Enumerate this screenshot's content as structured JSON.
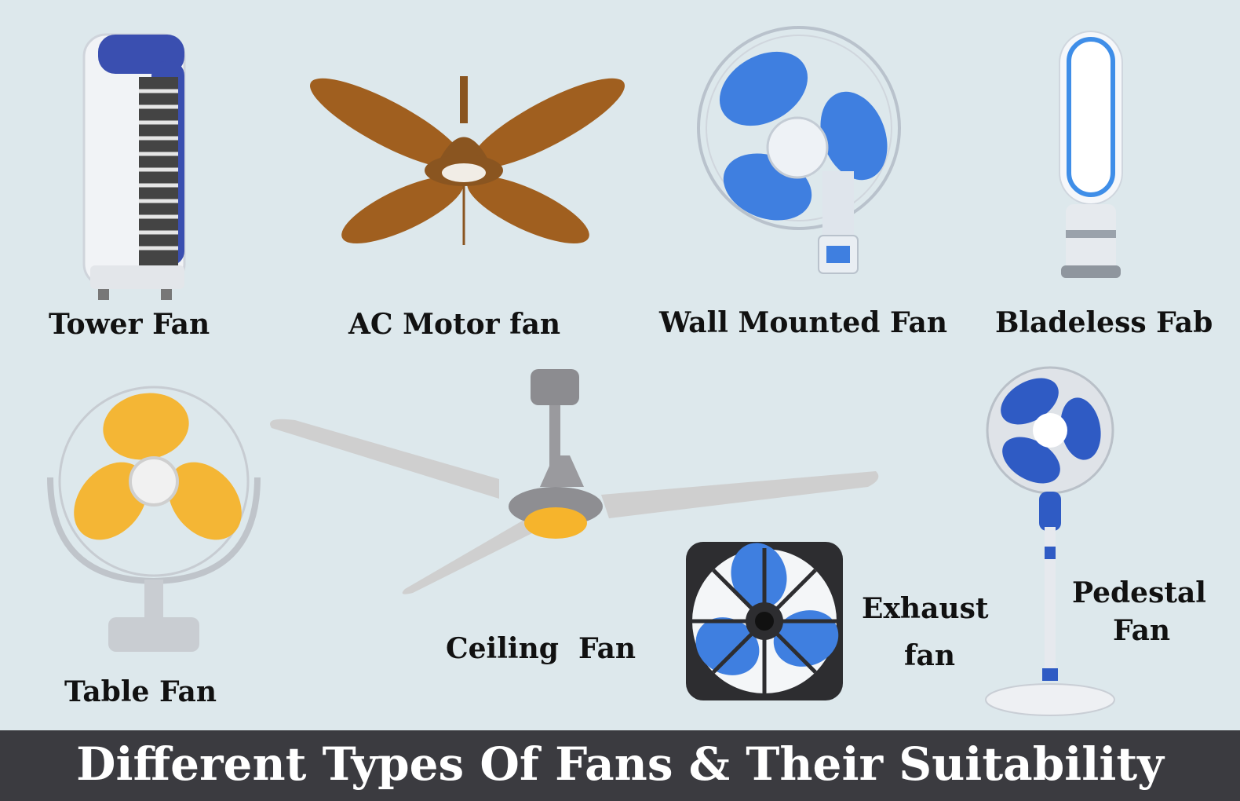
{
  "fans": {
    "tower": "Tower Fan",
    "ac_motor": "AC Motor fan",
    "wall_mounted": "Wall Mounted Fan",
    "bladeless": "Bladeless Fab",
    "table": "Table Fan",
    "ceiling": "Ceiling  Fan",
    "exhaust_line1": "Exhaust",
    "exhaust_line2": "fan",
    "pedestal_line1": "Pedestal",
    "pedestal_line2": "Fan"
  },
  "footer": {
    "title": "Different Types Of Fans & Their Suitability"
  },
  "colors": {
    "background": "#dde8ec",
    "footer_bg": "#3b3b40",
    "tower_blue": "#3a4fb0",
    "wood_brown": "#a05f1f",
    "fan_blue": "#3f7fe0",
    "table_yellow": "#f6b42c",
    "ceiling_grey": "#c9c9c9",
    "exhaust_frame": "#2d2d30"
  },
  "icons": [
    "tower-fan-icon",
    "ac-motor-fan-icon",
    "wall-mounted-fan-icon",
    "bladeless-fan-icon",
    "table-fan-icon",
    "ceiling-fan-icon",
    "exhaust-fan-icon",
    "pedestal-fan-icon"
  ]
}
